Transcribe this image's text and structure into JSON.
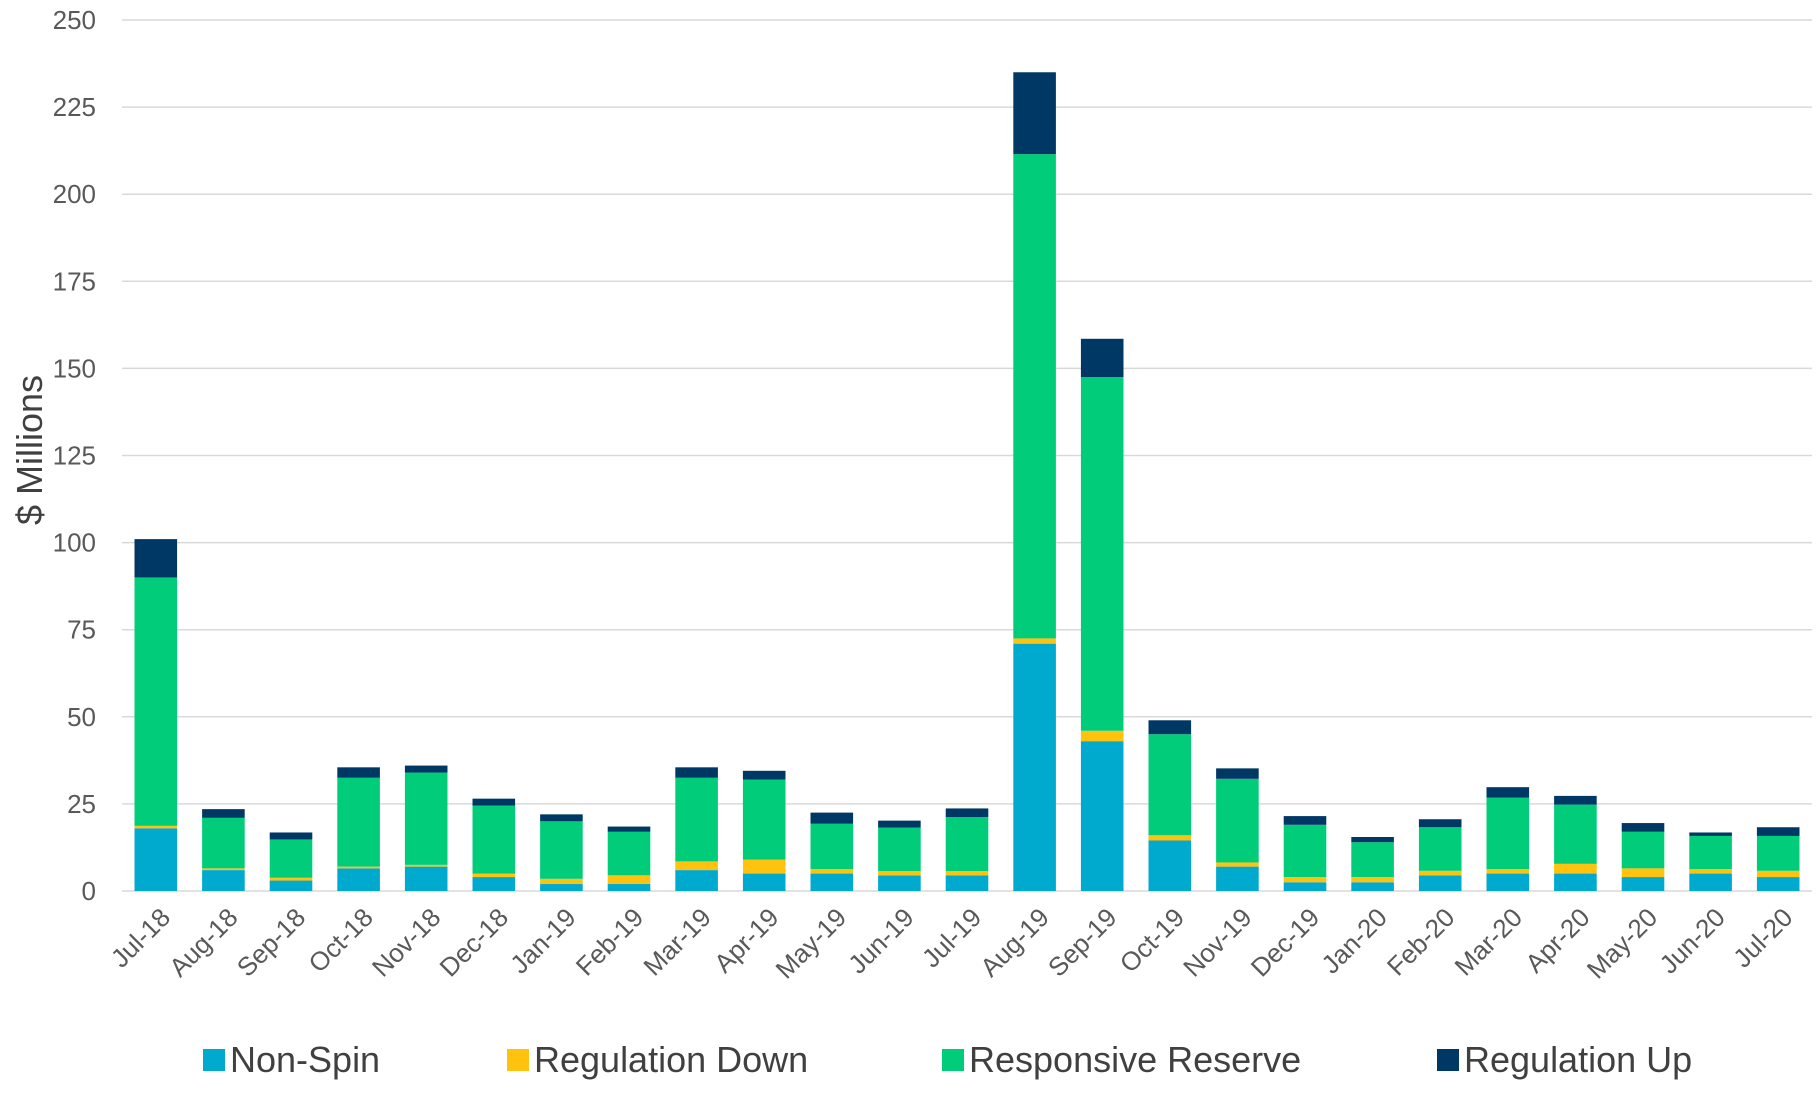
{
  "chart_data": {
    "type": "bar",
    "stacked": true,
    "title": "",
    "xlabel": "",
    "ylabel": "$ Millions",
    "ylim": [
      0,
      250
    ],
    "yticks": [
      0,
      25,
      50,
      75,
      100,
      125,
      150,
      175,
      200,
      225,
      250
    ],
    "grid": true,
    "legend_position": "bottom",
    "categories": [
      "Jul-18",
      "Aug-18",
      "Sep-18",
      "Oct-18",
      "Nov-18",
      "Dec-18",
      "Jan-19",
      "Feb-19",
      "Mar-19",
      "Apr-19",
      "May-19",
      "Jun-19",
      "Jul-19",
      "Aug-19",
      "Sep-19",
      "Oct-19",
      "Nov-19",
      "Dec-19",
      "Jan-20",
      "Feb-20",
      "Mar-20",
      "Apr-20",
      "May-20",
      "Jun-20",
      "Jul-20"
    ],
    "series": [
      {
        "name": "Non-Spin",
        "color": "#00A9CE",
        "values": [
          18,
          6,
          3,
          6.5,
          7,
          4,
          2,
          2,
          6,
          5,
          5,
          4.5,
          4.5,
          71,
          43,
          14.5,
          7,
          2.5,
          2.5,
          4.5,
          5,
          5,
          4,
          5,
          4
        ]
      },
      {
        "name": "Regulation Down",
        "color": "#FFC20E",
        "values": [
          0.7,
          0.5,
          0.8,
          0.5,
          0.5,
          1,
          1.5,
          2.5,
          2.5,
          4,
          1.3,
          1.2,
          1.2,
          1.5,
          3,
          1.5,
          1.2,
          1.5,
          1.5,
          1.3,
          1.3,
          2.8,
          2.5,
          1.3,
          1.8
        ]
      },
      {
        "name": "Responsive Reserve",
        "color": "#00CC7A",
        "values": [
          71.3,
          14.5,
          11,
          25.5,
          26.5,
          19.5,
          16.5,
          12.5,
          24,
          23,
          13,
          12.5,
          15.5,
          139,
          101.5,
          29,
          24,
          15,
          10,
          12.5,
          20.5,
          17,
          10.5,
          9.5,
          10
        ]
      },
      {
        "name": "Regulation Up",
        "color": "#003865",
        "values": [
          11,
          2.5,
          2,
          3,
          2,
          2,
          2,
          1.5,
          3,
          2.5,
          3.2,
          2,
          2.5,
          23.5,
          11,
          4,
          3,
          2.5,
          1.5,
          2.3,
          3,
          2.5,
          2.5,
          1,
          2.5
        ]
      }
    ]
  }
}
